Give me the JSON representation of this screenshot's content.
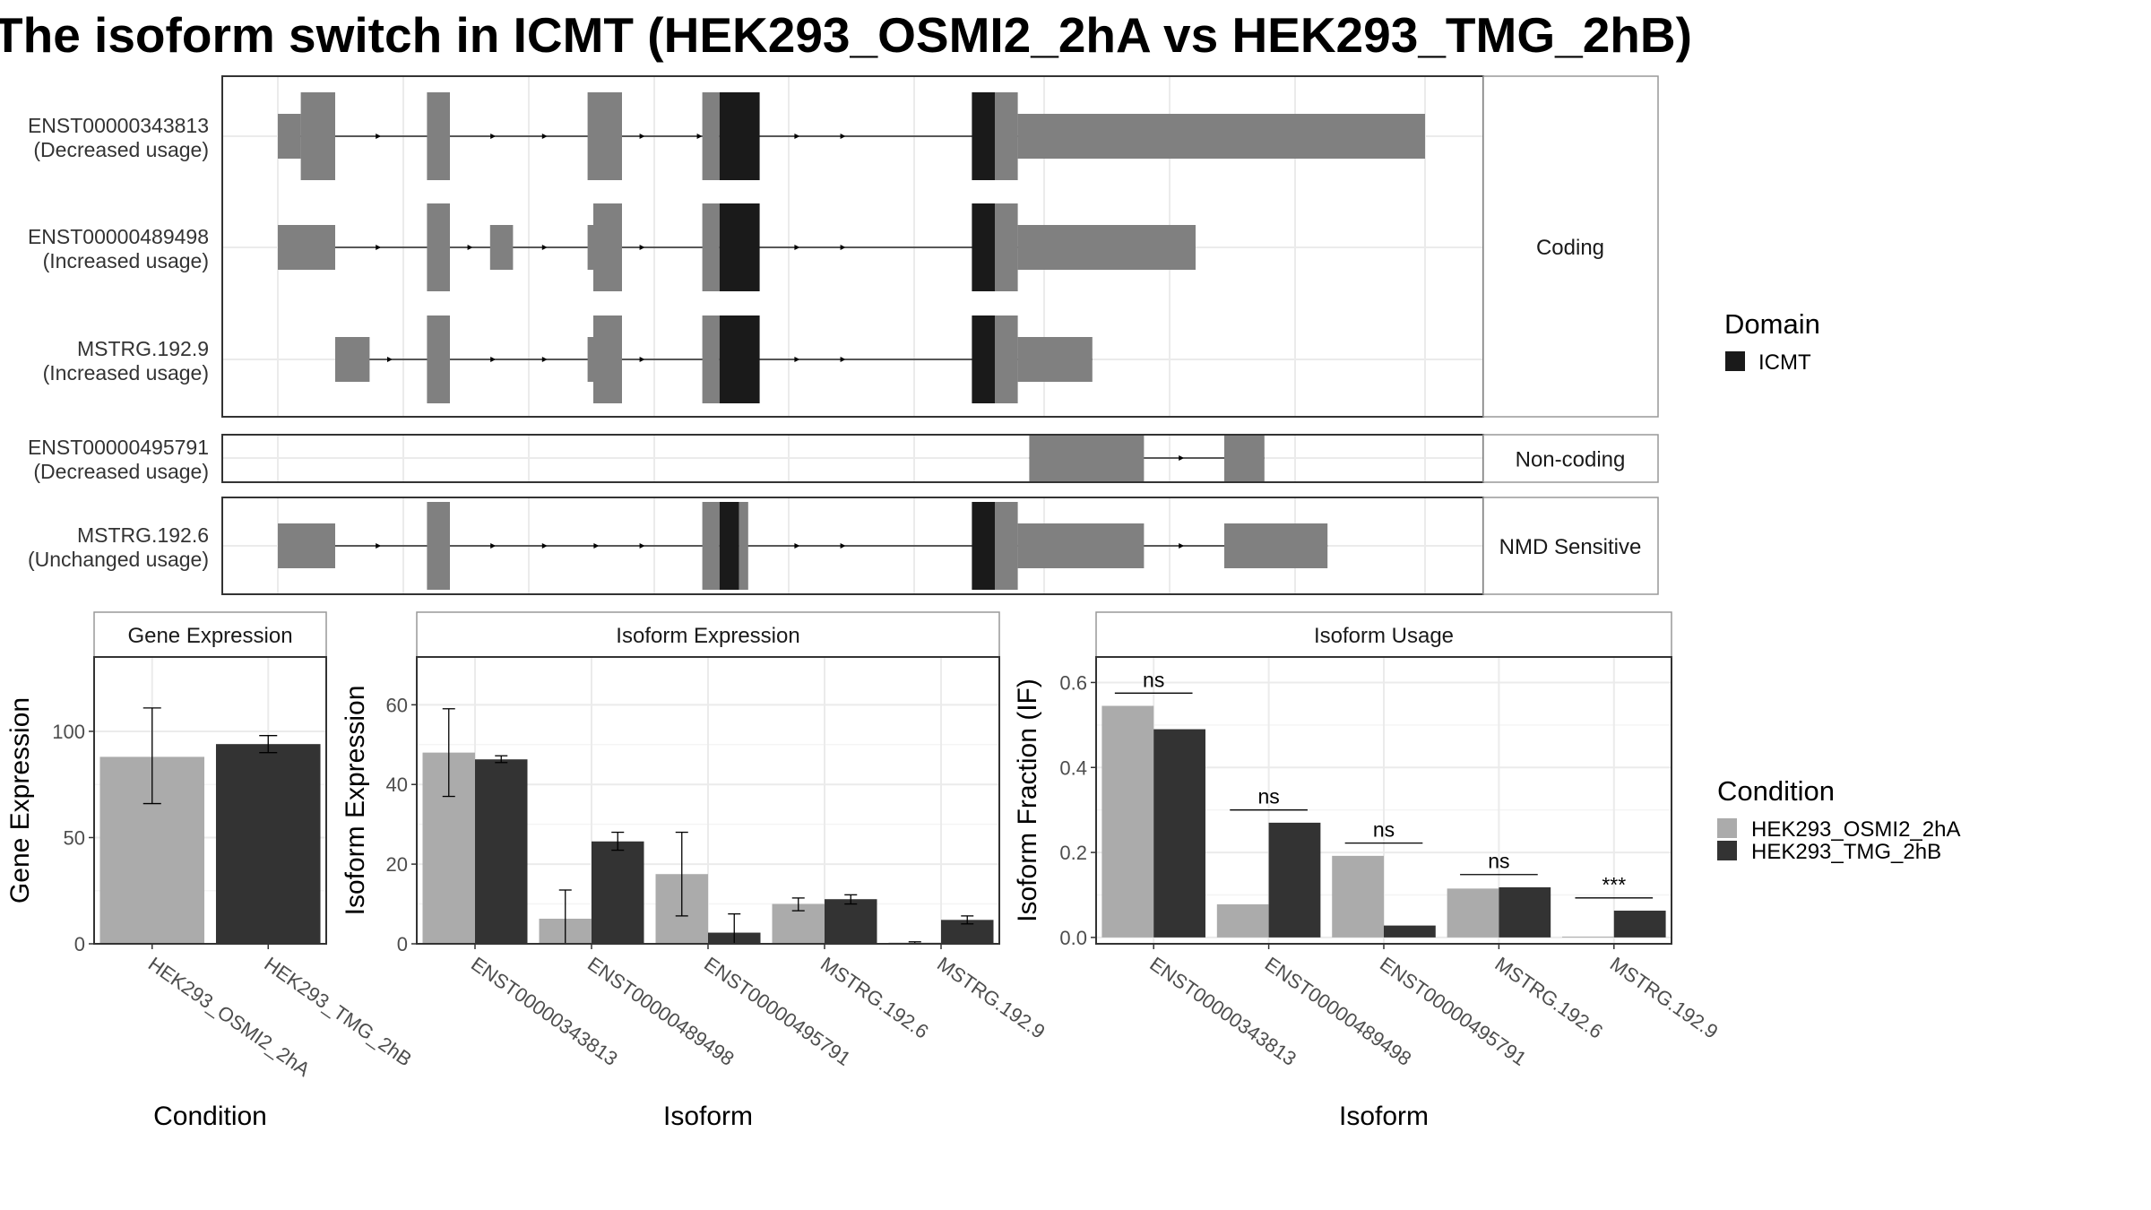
{
  "title": "The isoform switch in ICMT (HEK293_OSMI2_2hA vs HEK293_TMG_2hB)",
  "colors": {
    "cond_a": "#ababab",
    "cond_b": "#333333",
    "exon": "#808080",
    "domain": "#1a1a1a",
    "grid": "#ebebeb"
  },
  "structure": {
    "genome_range": [
      0,
      1000
    ],
    "facets": [
      {
        "label": "Coding",
        "tracks": [
          {
            "id": "ENST00000343813",
            "status": "(Decreased usage)",
            "exons": [
              [
                0,
                20,
                "s"
              ],
              [
                20,
                50,
                "t"
              ],
              [
                130,
                150,
                "t"
              ],
              [
                270,
                300,
                "t"
              ],
              [
                370,
                385,
                "t"
              ],
              [
                385,
                420,
                "d"
              ],
              [
                605,
                625,
                "d"
              ],
              [
                625,
                645,
                "t"
              ],
              [
                645,
                1000,
                "s"
              ]
            ],
            "arrows": [
              90,
              150,
              190,
              235,
              320,
              370,
              410,
              455,
              495
            ]
          },
          {
            "id": "ENST00000489498",
            "status": "(Increased usage)",
            "exons": [
              [
                0,
                50,
                "s"
              ],
              [
                130,
                150,
                "t"
              ],
              [
                185,
                205,
                "s"
              ],
              [
                270,
                275,
                "s"
              ],
              [
                275,
                300,
                "t"
              ],
              [
                370,
                385,
                "t"
              ],
              [
                385,
                420,
                "d"
              ],
              [
                605,
                625,
                "d"
              ],
              [
                625,
                645,
                "t"
              ],
              [
                645,
                800,
                "s"
              ]
            ],
            "arrows": [
              90,
              170,
              235,
              320,
              410,
              455,
              495
            ]
          },
          {
            "id": "MSTRG.192.9",
            "status": "(Increased usage)",
            "exons": [
              [
                50,
                80,
                "s"
              ],
              [
                130,
                150,
                "t"
              ],
              [
                270,
                275,
                "s"
              ],
              [
                275,
                300,
                "t"
              ],
              [
                370,
                385,
                "t"
              ],
              [
                385,
                420,
                "d"
              ],
              [
                605,
                625,
                "d"
              ],
              [
                625,
                645,
                "t"
              ],
              [
                645,
                710,
                "s"
              ]
            ],
            "arrows": [
              100,
              190,
              235,
              320,
              410,
              455,
              495
            ]
          }
        ]
      },
      {
        "label": "Non-coding",
        "tracks": [
          {
            "id": "ENST00000495791",
            "status": "(Decreased usage)",
            "exons": [
              [
                655,
                755,
                "t"
              ],
              [
                825,
                860,
                "t"
              ]
            ],
            "arrows": [
              790
            ]
          }
        ]
      },
      {
        "label": "NMD Sensitive",
        "tracks": [
          {
            "id": "MSTRG.192.6",
            "status": "(Unchanged usage)",
            "exons": [
              [
                0,
                50,
                "s"
              ],
              [
                130,
                150,
                "t"
              ],
              [
                370,
                385,
                "t"
              ],
              [
                385,
                402,
                "d"
              ],
              [
                402,
                410,
                "t"
              ],
              [
                605,
                625,
                "d"
              ],
              [
                625,
                645,
                "t"
              ],
              [
                645,
                755,
                "s"
              ],
              [
                825,
                915,
                "s"
              ]
            ],
            "arrows": [
              90,
              190,
              235,
              280,
              320,
              455,
              495,
              790
            ]
          }
        ]
      }
    ]
  },
  "legend_domain": {
    "title": "Domain",
    "items": [
      {
        "label": "ICMT",
        "color": "#1a1a1a"
      }
    ]
  },
  "legend_condition": {
    "title": "Condition",
    "items": [
      {
        "label": "HEK293_OSMI2_2hA",
        "color": "#ababab"
      },
      {
        "label": "HEK293_TMG_2hB",
        "color": "#333333"
      }
    ]
  },
  "chart_data": [
    {
      "type": "bar",
      "title": "Gene Expression",
      "xlabel": "Condition",
      "ylabel": "Gene Expression",
      "ylim": [
        0,
        135
      ],
      "yticks": [
        0,
        50,
        100
      ],
      "categories": [
        "HEK293_OSMI2_2hA",
        "HEK293_TMG_2hB"
      ],
      "values": [
        88,
        94
      ],
      "errors": [
        [
          66,
          111
        ],
        [
          90,
          98
        ]
      ],
      "colors": [
        "#ababab",
        "#333333"
      ]
    },
    {
      "type": "bar",
      "title": "Isoform Expression",
      "xlabel": "Isoform",
      "ylabel": "Isoform Expression",
      "ylim": [
        0,
        72
      ],
      "yticks": [
        0,
        20,
        40,
        60
      ],
      "categories": [
        "ENST00000343813",
        "ENST00000489498",
        "ENST00000495791",
        "MSTRG.192.6",
        "MSTRG.192.9"
      ],
      "series": [
        {
          "name": "HEK293_OSMI2_2hA",
          "values": [
            48,
            6.3,
            17.5,
            10,
            0.3
          ],
          "errors": [
            [
              37,
              59
            ],
            [
              0,
              13.5
            ],
            [
              7,
              28
            ],
            [
              8.3,
              11.5
            ],
            [
              0,
              0.5
            ]
          ]
        },
        {
          "name": "HEK293_TMG_2hB",
          "values": [
            46.3,
            25.7,
            2.8,
            11.2,
            6
          ],
          "errors": [
            [
              45.5,
              47.2
            ],
            [
              23.5,
              28
            ],
            [
              0,
              7.5
            ],
            [
              10,
              12.3
            ],
            [
              5,
              7
            ]
          ]
        }
      ]
    },
    {
      "type": "bar",
      "title": "Isoform Usage",
      "xlabel": "Isoform",
      "ylabel": "Isoform Fraction (IF)",
      "ylim": [
        -0.015,
        0.66
      ],
      "yticks": [
        0.0,
        0.2,
        0.4,
        0.6
      ],
      "categories": [
        "ENST00000343813",
        "ENST00000489498",
        "ENST00000495791",
        "MSTRG.192.6",
        "MSTRG.192.9"
      ],
      "series": [
        {
          "name": "HEK293_OSMI2_2hA",
          "values": [
            0.545,
            0.078,
            0.192,
            0.115,
            0.002
          ]
        },
        {
          "name": "HEK293_TMG_2hB",
          "values": [
            0.49,
            0.27,
            0.028,
            0.118,
            0.063
          ]
        }
      ],
      "significance": [
        {
          "label": "ns",
          "y": 0.575
        },
        {
          "label": "ns",
          "y": 0.3
        },
        {
          "label": "ns",
          "y": 0.222
        },
        {
          "label": "ns",
          "y": 0.148
        },
        {
          "label": "***",
          "y": 0.093
        }
      ]
    }
  ]
}
